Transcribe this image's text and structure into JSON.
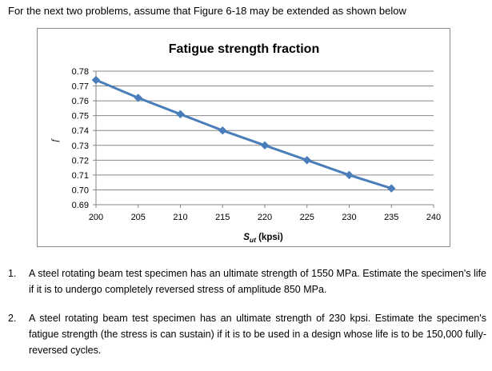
{
  "intro": "For the next two problems, assume that Figure 6-18 may be extended as shown below",
  "chart_data": {
    "type": "line",
    "title": "Fatigue strength fraction",
    "xlabel_main": "S",
    "xlabel_sub": "ut",
    "xlabel_rest": " (kpsi)",
    "ylabel": "f",
    "x": [
      200,
      205,
      210,
      215,
      220,
      225,
      230,
      235
    ],
    "y": [
      0.774,
      0.762,
      0.751,
      0.74,
      0.73,
      0.72,
      0.71,
      0.701
    ],
    "xlim": [
      200,
      240
    ],
    "ylim": [
      0.69,
      0.78
    ],
    "x_ticks": [
      "200",
      "205",
      "210",
      "215",
      "220",
      "225",
      "230",
      "235",
      "240"
    ],
    "y_ticks": [
      "0.78",
      "0.77",
      "0.76",
      "0.75",
      "0.74",
      "0.73",
      "0.72",
      "0.71",
      "0.70",
      "0.69"
    ],
    "grid": "horizontal",
    "marker": "diamond",
    "line_color": "#4a7ebb",
    "grid_color": "#868686"
  },
  "problems": [
    {
      "num": "1.",
      "text": "A steel rotating beam test specimen has an ultimate strength of 1550 MPa. Estimate the specimen's life if it is to undergo completely reversed stress of amplitude 850 MPa."
    },
    {
      "num": "2.",
      "text": "A steel rotating beam test specimen has an ultimate strength of 230 kpsi. Estimate the specimen's fatigue strength (the stress is can sustain) if it is to be used in a design whose life is to be 150,000 fully-reversed cycles."
    }
  ]
}
